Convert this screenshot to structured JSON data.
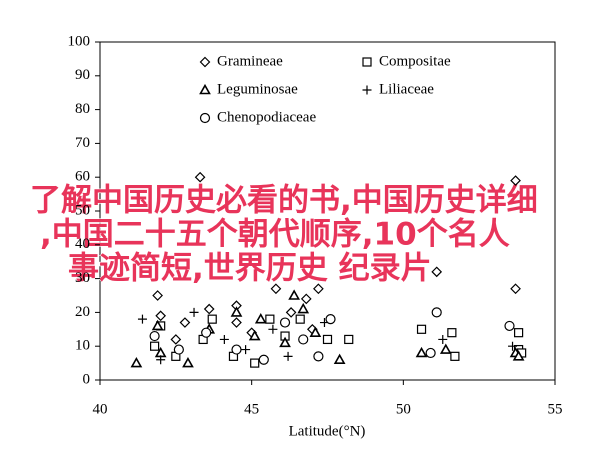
{
  "chart_data": {
    "type": "scatter",
    "xlabel": "Latitude(°N)",
    "xlim": [
      40,
      55
    ],
    "xticks": [
      40,
      45,
      50,
      55
    ],
    "ylim": [
      0,
      100
    ],
    "yticks": [
      0,
      10,
      20,
      30,
      40,
      50,
      60,
      70,
      80,
      90,
      100
    ],
    "series": [
      {
        "name": "Gramineae",
        "marker": "diamond",
        "color": "#000000",
        "x": [
          41.9,
          42,
          42.8,
          43.3,
          43.6,
          44.5,
          44.5,
          45.8,
          46.3,
          46.8,
          47.2,
          51.1,
          53.7,
          53.7,
          42.5,
          45,
          47
        ],
        "values": [
          25,
          19,
          17,
          60,
          21,
          17,
          22,
          27,
          20,
          24,
          27,
          32,
          59,
          27,
          12,
          14,
          15
        ]
      },
      {
        "name": "Compositae",
        "marker": "square",
        "color": "#000000",
        "x": [
          41.8,
          42,
          42.5,
          43.4,
          43.7,
          44.4,
          45.1,
          45.6,
          46.1,
          46.6,
          47.5,
          48.2,
          50.6,
          51.6,
          51.7,
          53.8,
          53.8,
          53.9
        ],
        "values": [
          10,
          16,
          7,
          12,
          18,
          7,
          5,
          18,
          13,
          18,
          12,
          12,
          15,
          14,
          7,
          14,
          9,
          8
        ]
      },
      {
        "name": "Leguminosae",
        "marker": "triangle",
        "color": "#000000",
        "x": [
          41.2,
          41.9,
          42,
          42.9,
          43.6,
          44.5,
          45.1,
          45.3,
          46.1,
          46.4,
          46.7,
          47.1,
          47.9,
          50.6,
          51.4,
          53.7,
          53.8
        ],
        "values": [
          5,
          16,
          8,
          5,
          15,
          20,
          13,
          18,
          11,
          25,
          21,
          14,
          6,
          8,
          9,
          8,
          7
        ]
      },
      {
        "name": "Liliaceae",
        "marker": "plus",
        "color": "#000000",
        "x": [
          41.4,
          42,
          43.1,
          44.1,
          44.8,
          45.7,
          46.2,
          47.4,
          51.3,
          53.6
        ],
        "values": [
          18,
          6,
          20,
          12,
          9,
          15,
          7,
          17,
          12,
          10
        ]
      },
      {
        "name": "Chenopodiaceae",
        "marker": "circle",
        "color": "#000000",
        "x": [
          41.8,
          42.6,
          43.5,
          44.5,
          45.4,
          46.1,
          46.7,
          47.2,
          47.6,
          51.1,
          50.9,
          53.5
        ],
        "values": [
          13,
          9,
          14,
          9,
          6,
          17,
          12,
          7,
          18,
          20,
          8,
          16
        ]
      }
    ]
  },
  "overlay": [
    "了解中国历史必看的书,中国历史详细",
    ",中国二十五个朝代顺序,10个名人",
    "事迹简短,世界历史 纪录片"
  ]
}
